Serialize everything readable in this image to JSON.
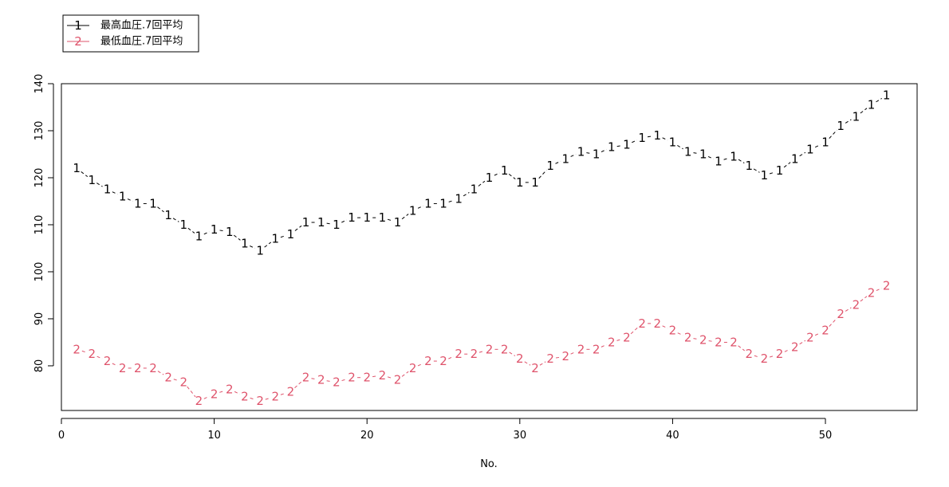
{
  "chart_data": {
    "type": "line",
    "title": "",
    "xlabel": "No.",
    "ylabel": "",
    "xlim": [
      0,
      56
    ],
    "ylim": [
      70.5,
      140
    ],
    "x_ticks": [
      0,
      10,
      20,
      30,
      40,
      50
    ],
    "y_ticks": [
      80,
      90,
      100,
      110,
      120,
      130,
      140
    ],
    "grid": false,
    "legend_position": "top-left",
    "x": [
      1,
      2,
      3,
      4,
      5,
      6,
      7,
      8,
      9,
      10,
      11,
      12,
      13,
      14,
      15,
      16,
      17,
      18,
      19,
      20,
      21,
      22,
      23,
      24,
      25,
      26,
      27,
      28,
      29,
      30,
      31,
      32,
      33,
      34,
      35,
      36,
      37,
      38,
      39,
      40,
      41,
      42,
      43,
      44,
      45,
      46,
      47,
      48,
      49,
      50,
      51,
      52,
      53,
      54
    ],
    "series": [
      {
        "name": "最高血圧.7回平均",
        "symbol": "1",
        "color": "#000000",
        "values": [
          122,
          119.5,
          117.5,
          116,
          114.5,
          114.5,
          112,
          110,
          107.5,
          109,
          108.5,
          106,
          104.5,
          107,
          108,
          110.5,
          110.5,
          110,
          111.5,
          111.5,
          111.5,
          110.5,
          113,
          114.5,
          114.5,
          115.5,
          117.5,
          120,
          121.5,
          119,
          119,
          122.5,
          124,
          125.5,
          125,
          126.5,
          127,
          128.5,
          129,
          127.5,
          125.5,
          125,
          123.5,
          124.5,
          122.5,
          120.5,
          121.5,
          124,
          126,
          127.5,
          131,
          133,
          135.5,
          137.5
        ]
      },
      {
        "name": "最低血圧.7回平均",
        "symbol": "2",
        "color": "#df536b",
        "values": [
          83.5,
          82.5,
          81,
          79.5,
          79.5,
          79.5,
          77.5,
          76.5,
          72.5,
          74,
          75,
          73.5,
          72.5,
          73.5,
          74.5,
          77.5,
          77,
          76.5,
          77.5,
          77.5,
          78,
          77,
          79.5,
          81,
          81,
          82.5,
          82.5,
          83.5,
          83.5,
          81.5,
          79.5,
          81.5,
          82,
          83.5,
          83.5,
          85,
          86,
          89,
          89,
          87.5,
          86,
          85.5,
          85,
          85,
          82.5,
          81.5,
          82.5,
          84,
          86,
          87.5,
          91,
          93,
          95.5,
          97
        ]
      }
    ]
  }
}
